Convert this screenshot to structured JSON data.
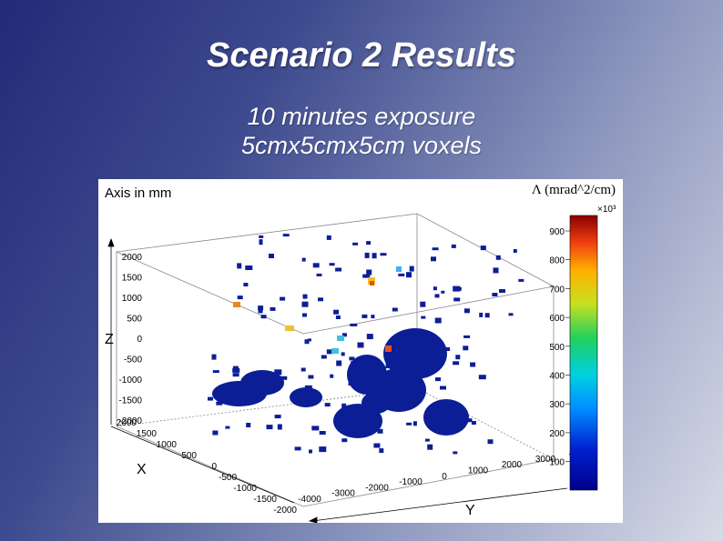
{
  "slide": {
    "title": "Scenario 2 Results",
    "subtitle_line1": "10 minutes exposure",
    "subtitle_line2": "5cmx5cmx5cm voxels"
  },
  "plot": {
    "axis_units_label": "Axis in mm",
    "colorbar_title": "Λ (mrad^2/cm)",
    "colorbar_multiplier": "×10³",
    "colorbar_ticks": [
      "900",
      "800",
      "700",
      "600",
      "500",
      "400",
      "300",
      "200",
      "100"
    ],
    "z_axis_letter": "Z",
    "x_axis_letter": "X",
    "y_axis_letter": "Y",
    "z_ticks": [
      "2000",
      "1500",
      "1000",
      "500",
      "0",
      "-500",
      "-1000",
      "-1500",
      "-2000"
    ],
    "x_ticks": [
      "2000",
      "1500",
      "1000",
      "500",
      "0",
      "-500",
      "-1000",
      "-1500",
      "-2000"
    ],
    "y_ticks": [
      "-4000",
      "-3000",
      "-2000",
      "-1000",
      "0",
      "1000",
      "2000",
      "3000",
      "4000"
    ],
    "colors": {
      "voxel_low": "#0c1e96",
      "voxel_hot": "#e6501e",
      "colorbar_top": "#8b0000",
      "colorbar_bottom": "#00008b"
    }
  }
}
